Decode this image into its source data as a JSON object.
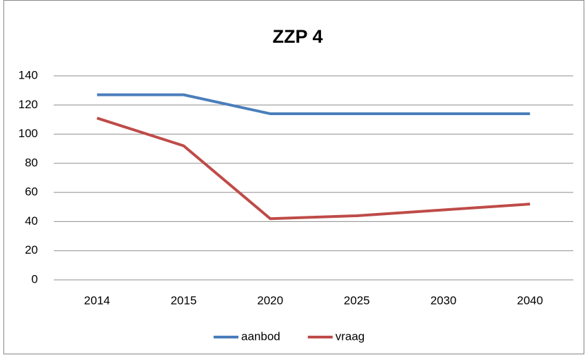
{
  "chart_data": {
    "type": "line",
    "title": "ZZP 4",
    "categories": [
      "2014",
      "2015",
      "2020",
      "2025",
      "2030",
      "2040"
    ],
    "series": [
      {
        "name": "aanbod",
        "color": "#4a7ebb",
        "values": [
          127,
          127,
          114,
          114,
          114,
          114
        ]
      },
      {
        "name": "vraag",
        "color": "#be4b48",
        "values": [
          111,
          92,
          42,
          44,
          48,
          52
        ]
      }
    ],
    "ylim": [
      0,
      140
    ],
    "yticks": [
      0,
      20,
      40,
      60,
      80,
      100,
      120,
      140
    ],
    "grid": true,
    "legend": "bottom"
  }
}
